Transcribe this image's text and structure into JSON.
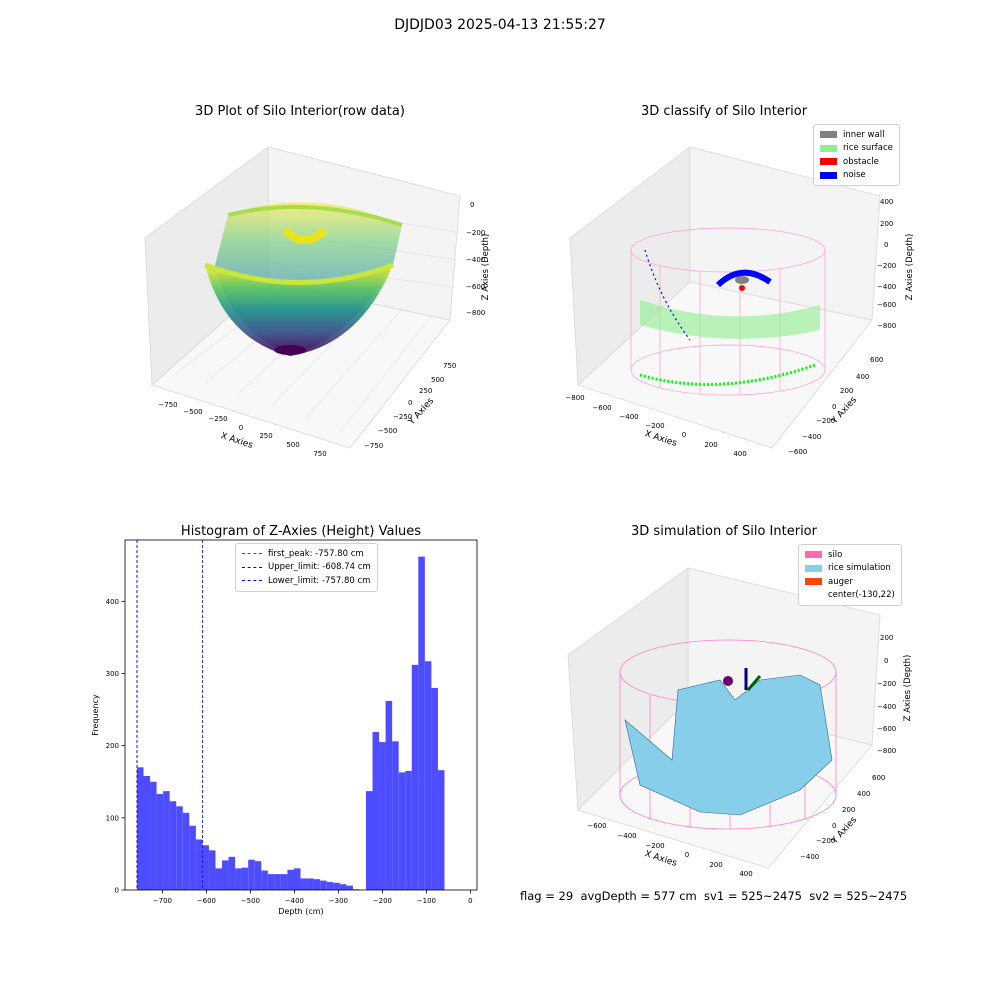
{
  "figure": {
    "suptitle": "DJDJD03 2025-04-13 21:55:27",
    "footer": "flag = 29  avgDepth = 577 cm  sv1 = 525~2475  sv2 = 525~2475"
  },
  "panels": {
    "raw": {
      "title": "3D Plot of Silo Interior(row data)",
      "xlabel": "X Axies",
      "ylabel": "Y Axies",
      "zlabel": "Z Axies (Depth)",
      "xticks": [
        "−750",
        "−500",
        "−250",
        "0",
        "250",
        "500",
        "750"
      ],
      "yticks": [
        "750",
        "500",
        "250",
        "0",
        "−250",
        "−500",
        "−750"
      ],
      "zticks": [
        "0",
        "−200",
        "−400",
        "−600",
        "−800"
      ]
    },
    "classify": {
      "title": "3D classify of Silo Interior",
      "xlabel": "X Axies",
      "ylabel": "Y Axies",
      "zlabel": "Z Axies (Depth)",
      "xticks": [
        "−800",
        "−600",
        "−400",
        "−200",
        "0",
        "200",
        "400"
      ],
      "yticks": [
        "600",
        "400",
        "200",
        "0",
        "−200",
        "−400",
        "−600"
      ],
      "zticks": [
        "400",
        "200",
        "0",
        "−200",
        "−400",
        "−600",
        "−800"
      ],
      "legend": [
        {
          "label": "inner wall",
          "color": "#808080"
        },
        {
          "label": "rice surface",
          "color": "#90ee90"
        },
        {
          "label": "obstacle",
          "color": "#ff0000"
        },
        {
          "label": "noise",
          "color": "#0000ff"
        }
      ]
    },
    "simulation": {
      "title": "3D simulation of Silo Interior",
      "xlabel": "X Axies",
      "ylabel": "Y Axies",
      "zlabel": "Z Axies (Depth)",
      "xticks": [
        "−600",
        "−400",
        "−200",
        "0",
        "200",
        "400"
      ],
      "yticks": [
        "600",
        "400",
        "200",
        "0",
        "−200",
        "−400"
      ],
      "zticks": [
        "200",
        "0",
        "−200",
        "−400",
        "−600",
        "−800"
      ],
      "legend": [
        {
          "label": "silo",
          "color": "#ff69b4"
        },
        {
          "label": "rice simulation",
          "color": "#87ceeb"
        },
        {
          "label": "auger",
          "color": "#ff4500"
        },
        {
          "label": "center(-130,22)",
          "color": ""
        }
      ]
    }
  },
  "chart_data": [
    {
      "type": "bar",
      "title": "Histogram of Z-Axies (Height) Values",
      "xlabel": "Depth (cm)",
      "ylabel": "Frequency",
      "xlim": [
        -785,
        15
      ],
      "ylim": [
        0,
        485
      ],
      "xticks": [
        -700,
        -600,
        -500,
        -400,
        -300,
        -200,
        -100,
        0
      ],
      "xtick_labels": [
        "−700",
        "−600",
        "−500",
        "−400",
        "−300",
        "−200",
        "−100",
        "0"
      ],
      "yticks": [
        0,
        100,
        200,
        300,
        400
      ],
      "bar_color": "#4d4dff",
      "bin_start": -757.8,
      "bin_width": 14.87,
      "values": [
        170,
        158,
        150,
        133,
        137,
        123,
        116,
        107,
        89,
        70,
        62,
        55,
        30,
        41,
        46,
        30,
        31,
        42,
        40,
        27,
        22,
        22,
        22,
        28,
        30,
        16,
        16,
        15,
        13,
        11,
        10,
        8,
        6,
        1,
        0,
        137,
        219,
        205,
        262,
        206,
        163,
        165,
        312,
        462,
        317,
        280,
        166
      ],
      "lines": [
        {
          "label": "first_peak: -757.80 cm",
          "x": -757.8,
          "color": "#ff0000"
        },
        {
          "label": "Upper_limit: -608.74 cm",
          "x": -608.74,
          "color": "#0000ff"
        },
        {
          "label": "Lower_limit: -757.80 cm",
          "x": -757.8,
          "color": "#0000ff"
        }
      ],
      "legend_position": "upper center"
    }
  ]
}
